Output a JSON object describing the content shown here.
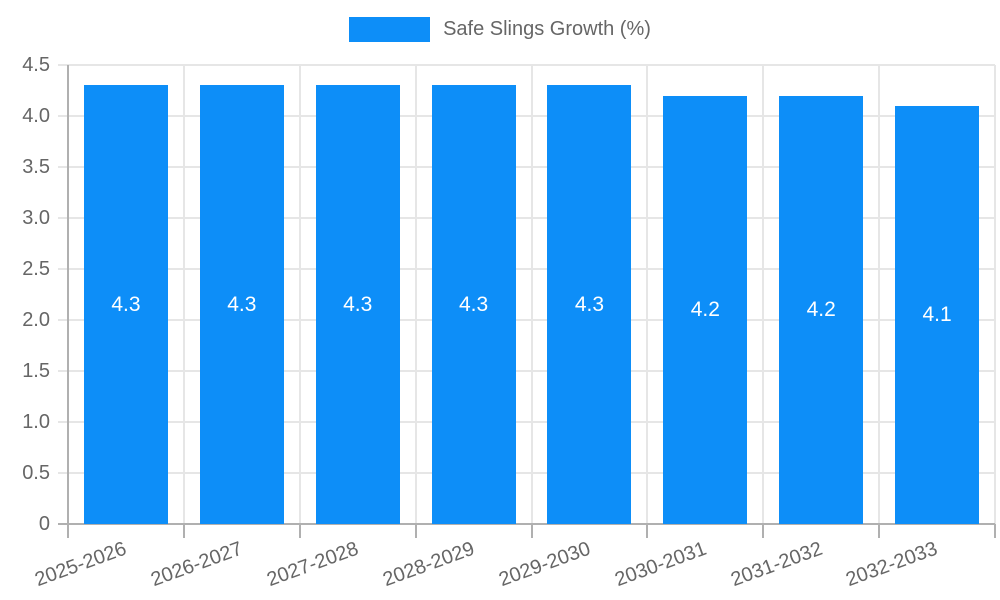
{
  "legend": {
    "label": "Safe Slings Growth (%)"
  },
  "chart_data": {
    "type": "bar",
    "title": "",
    "xlabel": "",
    "ylabel": "",
    "categories": [
      "2025-2026",
      "2026-2027",
      "2027-2028",
      "2028-2029",
      "2029-2030",
      "2030-2031",
      "2031-2032",
      "2032-2033"
    ],
    "series": [
      {
        "name": "Safe Slings Growth (%)",
        "values": [
          4.3,
          4.3,
          4.3,
          4.3,
          4.3,
          4.2,
          4.2,
          4.1
        ],
        "value_labels": [
          "4.3",
          "4.3",
          "4.3",
          "4.3",
          "4.3",
          "4.2",
          "4.2",
          "4.1"
        ]
      }
    ],
    "ylim": [
      0,
      4.5
    ],
    "ytick_labels": [
      "0",
      "0.5",
      "1.0",
      "1.5",
      "2.0",
      "2.5",
      "3.0",
      "3.5",
      "4.0",
      "4.5"
    ],
    "grid": true,
    "legend_position": "top",
    "colors": {
      "bar": "#0d8ef8",
      "value_label_text": "#ffffff",
      "axis_text": "#666666",
      "gridline": "#e6e6e6",
      "axis_line": "#b0b0b0"
    }
  }
}
